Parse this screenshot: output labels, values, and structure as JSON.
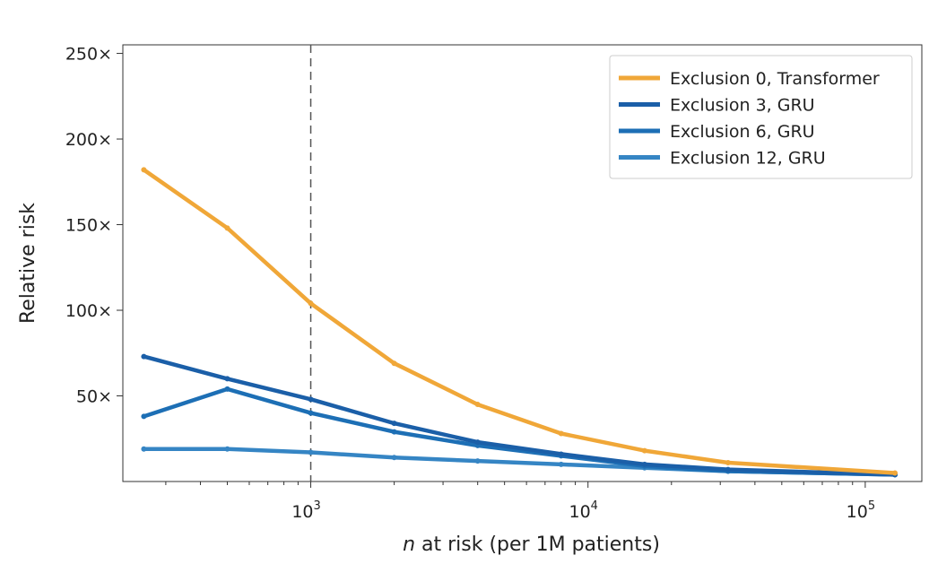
{
  "chart_data": {
    "type": "line",
    "title": "",
    "xlabel_var": "n",
    "xlabel_rest": " at risk (per 1M patients)",
    "ylabel": "Relative risk",
    "x_scale": "log",
    "xlim": [
      210,
      160000
    ],
    "ylim": [
      0,
      255
    ],
    "grid": false,
    "legend_position": "top-right",
    "x_ticks": [
      {
        "base": "10",
        "exp": "3",
        "value": 1000
      },
      {
        "base": "10",
        "exp": "4",
        "value": 10000
      },
      {
        "base": "10",
        "exp": "5",
        "value": 100000
      }
    ],
    "y_ticks": [
      {
        "label": "50×",
        "value": 50
      },
      {
        "label": "100×",
        "value": 100
      },
      {
        "label": "150×",
        "value": 150
      },
      {
        "label": "200×",
        "value": 200
      },
      {
        "label": "250×",
        "value": 250
      }
    ],
    "reference_line": {
      "x": 1000,
      "style": "dashed"
    },
    "series": [
      {
        "name": "Exclusion 0, Transformer",
        "color": "#F0A738",
        "x": [
          250,
          500,
          1000,
          2000,
          4000,
          8000,
          16000,
          32000,
          128000
        ],
        "values": [
          182,
          148,
          104,
          69,
          45,
          28,
          18,
          11,
          5
        ]
      },
      {
        "name": "Exclusion 3, GRU",
        "color": "#1B5FA8",
        "x": [
          250,
          500,
          1000,
          2000,
          4000,
          8000,
          16000,
          32000,
          128000
        ],
        "values": [
          73,
          60,
          48,
          34,
          23,
          16,
          10,
          7,
          4
        ]
      },
      {
        "name": "Exclusion 6, GRU",
        "color": "#1D6FB5",
        "x": [
          250,
          500,
          1000,
          2000,
          4000,
          8000,
          16000,
          32000,
          128000
        ],
        "values": [
          38,
          54,
          40,
          29,
          21,
          15,
          9,
          6,
          4
        ]
      },
      {
        "name": "Exclusion 12, GRU",
        "color": "#3585C4",
        "x": [
          250,
          500,
          1000,
          2000,
          4000,
          8000,
          16000,
          32000,
          128000
        ],
        "values": [
          19,
          19,
          17,
          14,
          12,
          10,
          8,
          6,
          4
        ]
      }
    ]
  }
}
